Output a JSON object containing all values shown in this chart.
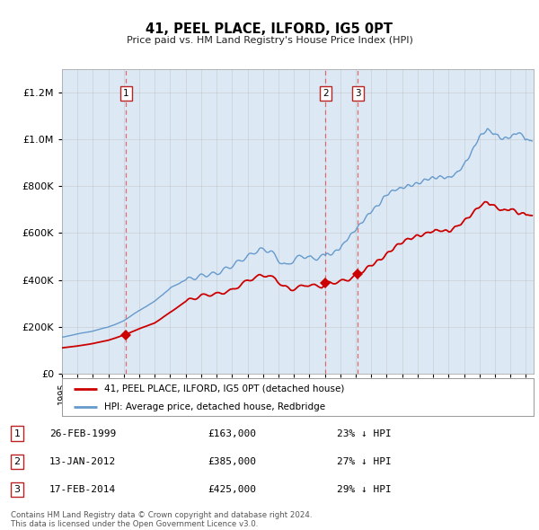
{
  "title": "41, PEEL PLACE, ILFORD, IG5 0PT",
  "subtitle": "Price paid vs. HM Land Registry's House Price Index (HPI)",
  "background_color": "#dce9f5",
  "plot_bg_color": "#dce9f5",
  "red_line_color": "#cc0000",
  "blue_line_color": "#6699cc",
  "grid_color": "#bbbbbb",
  "vline_color": "#dd5555",
  "transactions": [
    {
      "num": 1,
      "date": "26-FEB-1999",
      "price": 163000,
      "year": 1999.15,
      "pct": "23%",
      "dir": "↓"
    },
    {
      "num": 2,
      "date": "13-JAN-2012",
      "price": 385000,
      "year": 2012.04,
      "pct": "27%",
      "dir": "↓"
    },
    {
      "num": 3,
      "date": "17-FEB-2014",
      "price": 425000,
      "year": 2014.13,
      "pct": "29%",
      "dir": "↓"
    }
  ],
  "ylim": [
    0,
    1300000
  ],
  "xlim_start": 1995.0,
  "xlim_end": 2025.5,
  "legend_label_red": "41, PEEL PLACE, ILFORD, IG5 0PT (detached house)",
  "legend_label_blue": "HPI: Average price, detached house, Redbridge",
  "footer_line1": "Contains HM Land Registry data © Crown copyright and database right 2024.",
  "footer_line2": "This data is licensed under the Open Government Licence v3.0."
}
